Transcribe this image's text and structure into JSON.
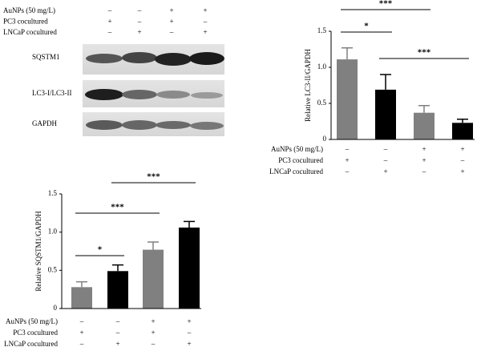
{
  "blot": {
    "conditions": [
      {
        "name": "AuNPs (50 mg/L)",
        "signs": [
          "–",
          "–",
          "+",
          "+"
        ]
      },
      {
        "name": "PC3 cocultured",
        "signs": [
          "+",
          "–",
          "+",
          "–"
        ]
      },
      {
        "name": "LNCaP cocultured",
        "signs": [
          "–",
          "+",
          "–",
          "+"
        ]
      }
    ],
    "bands": [
      "SQSTM1",
      "LC3-I/LC3-II",
      "GAPDH"
    ]
  },
  "chart_data": [
    {
      "type": "bar",
      "y_label": "Relative LC3-II/GAPDH",
      "ylim": [
        0,
        1.5
      ],
      "yticks": [
        0,
        0.5,
        {
          "value": 1,
          "label": "1.0"
        },
        1.5
      ],
      "values": [
        1.11,
        0.69,
        0.37,
        0.23
      ],
      "errors": [
        0.16,
        0.21,
        0.1,
        0.05
      ],
      "colors": [
        "#808080",
        "#000000",
        "#808080",
        "#000000"
      ],
      "conditions": [
        {
          "name": "AuNPs (50 mg/L)",
          "signs": [
            "–",
            "–",
            "+",
            "+"
          ]
        },
        {
          "name": "PC3 cocultured",
          "signs": [
            "+",
            "–",
            "+",
            "–"
          ]
        },
        {
          "name": "LNCaP cocultured",
          "signs": [
            "–",
            "+",
            "–",
            "+"
          ]
        }
      ],
      "significance": [
        "*",
        "***",
        "***"
      ]
    },
    {
      "type": "bar",
      "y_label": "Relative SQSTM1/GAPDH",
      "ylim": [
        0,
        1.5
      ],
      "yticks": [
        0,
        0.5,
        {
          "value": 1,
          "label": "1.0"
        },
        1.5
      ],
      "values": [
        0.28,
        0.49,
        0.77,
        1.06
      ],
      "errors": [
        0.07,
        0.08,
        0.1,
        0.08
      ],
      "colors": [
        "#808080",
        "#000000",
        "#808080",
        "#000000"
      ],
      "conditions": [
        {
          "name": "AuNPs (50 mg/L)",
          "signs": [
            "–",
            "–",
            "+",
            "+"
          ]
        },
        {
          "name": "PC3 cocultured",
          "signs": [
            "+",
            "–",
            "+",
            "–"
          ]
        },
        {
          "name": "LNCaP cocultured",
          "signs": [
            "–",
            "+",
            "–",
            "+"
          ]
        }
      ],
      "significance": [
        "*",
        "***",
        "***"
      ]
    }
  ]
}
